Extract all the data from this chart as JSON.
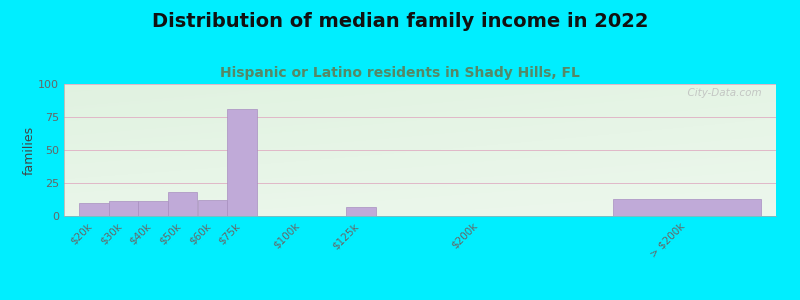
{
  "title": "Distribution of median family income in 2022",
  "subtitle": "Hispanic or Latino residents in Shady Hills, FL",
  "ylabel": "families",
  "categories": [
    "$20k",
    "$30k",
    "$40k",
    "$50k",
    "$60k",
    "$75k",
    "$100k",
    "$125k",
    "$200k",
    "> $200k"
  ],
  "values": [
    10,
    11,
    11,
    18,
    12,
    81,
    0,
    7,
    0,
    13
  ],
  "bar_positions": [
    0,
    1,
    2,
    3,
    4,
    5,
    7,
    9,
    13,
    18
  ],
  "bar_widths": [
    1,
    1,
    1,
    1,
    1,
    1,
    1,
    1,
    1,
    5
  ],
  "bar_color": "#c0aad8",
  "bar_edge_color": "#a88fc0",
  "background_outer": "#00eeff",
  "bg_color_topleft": "#d8edd8",
  "bg_color_topright": "#eef5ee",
  "bg_color_bottom": "#f5f5f0",
  "grid_color": "#e0b8c8",
  "title_color": "#111111",
  "subtitle_color": "#558866",
  "ylabel_color": "#444444",
  "tick_label_color": "#666666",
  "ylim": [
    0,
    100
  ],
  "yticks": [
    0,
    25,
    50,
    75,
    100
  ],
  "watermark": "  City-Data.com",
  "title_fontsize": 14,
  "subtitle_fontsize": 10,
  "ylabel_fontsize": 9,
  "tick_fontsize": 7.5
}
